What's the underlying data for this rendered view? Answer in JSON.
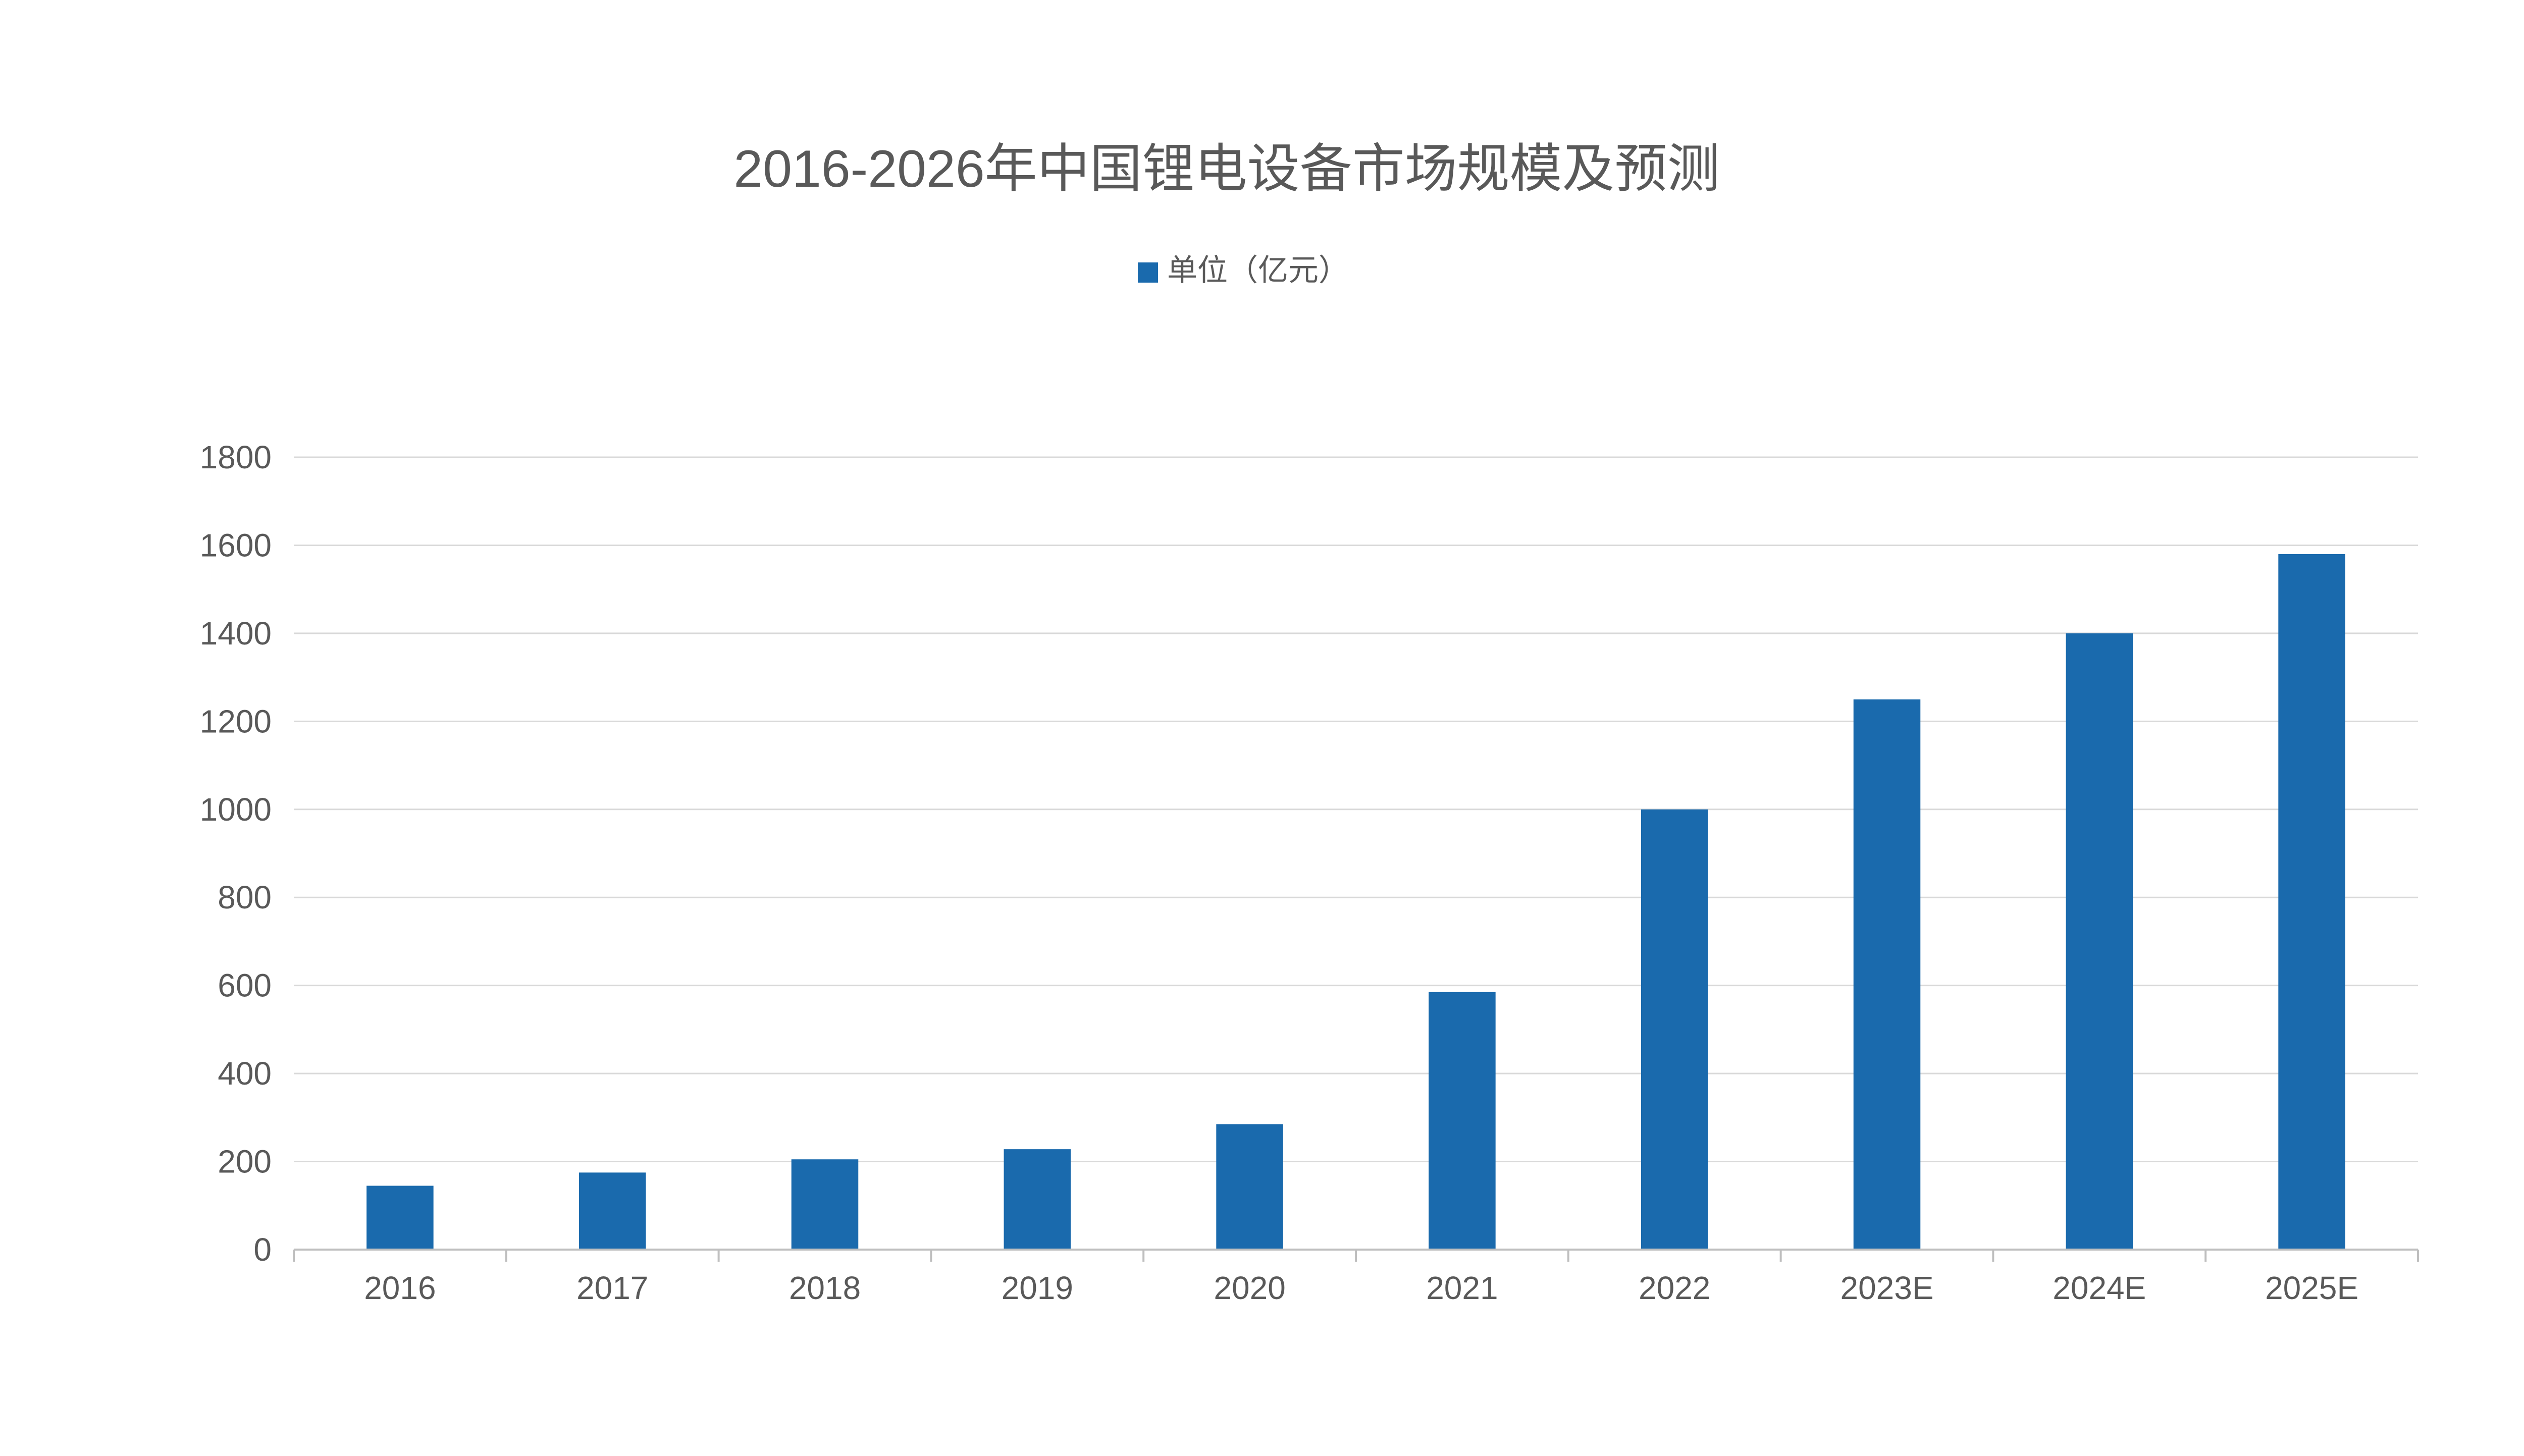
{
  "chart_data": {
    "type": "bar",
    "title": "2016-2026年中国锂电设备市场规模及预测",
    "legend": {
      "position": "top-center"
    },
    "categories": [
      "2016",
      "2017",
      "2018",
      "2019",
      "2020",
      "2021",
      "2022",
      "2023E",
      "2024E",
      "2025E"
    ],
    "series": [
      {
        "name": "单位（亿元）",
        "color": "#1a6aad",
        "values": [
          145,
          175,
          205,
          228,
          285,
          585,
          1000,
          1250,
          1400,
          1580
        ]
      }
    ],
    "ylim": [
      0,
      1800
    ],
    "yticks": [
      0,
      200,
      400,
      600,
      800,
      1000,
      1200,
      1400,
      1600,
      1800
    ],
    "grid": true,
    "colors": {
      "bar": "#1a6aad",
      "grid": "#d9d9d9",
      "axis": "#bfbfbf",
      "text": "#595959",
      "title": "#595959"
    }
  }
}
